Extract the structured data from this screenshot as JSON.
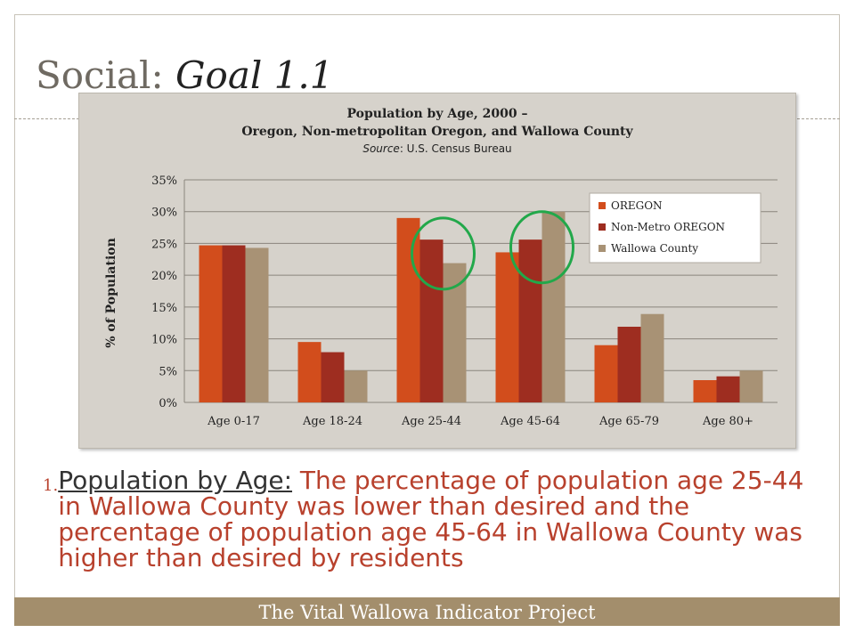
{
  "slide": {
    "title_prefix": "Social: ",
    "title_emphasis": "Goal 1.1",
    "footer": "The Vital Wallowa Indicator Project",
    "list_number": "1.",
    "list_lead": "Population by Age:",
    "list_text": " The percentage of population age 25-44 in Wallowa County was lower than desired and the percentage of population age 45-64 in Wallowa County was higher than desired by residents"
  },
  "chart_data": {
    "type": "bar",
    "title_line1": "Population by Age, 2000 –",
    "title_line2": "Oregon, Non-metropolitan Oregon, and Wallowa County",
    "source_label": "Source",
    "source_text": ": U.S. Census Bureau",
    "ylabel": "% of Population",
    "xlabel": "",
    "categories": [
      "Age 0-17",
      "Age 18-24",
      "Age 25-44",
      "Age 45-64",
      "Age 65-79",
      "Age 80+"
    ],
    "series": [
      {
        "name": "OREGON",
        "color": "#d24d1c",
        "values": [
          24.7,
          9.5,
          29.0,
          23.6,
          9.0,
          3.5
        ]
      },
      {
        "name": "Non-Metro OREGON",
        "color": "#9e2d20",
        "values": [
          24.7,
          7.9,
          25.6,
          25.6,
          11.9,
          4.1
        ]
      },
      {
        "name": "Wallowa County",
        "color": "#a89275",
        "values": [
          24.3,
          5.0,
          21.9,
          30.0,
          13.9,
          5.0
        ]
      }
    ],
    "ylim": [
      0,
      35
    ],
    "yticks": [
      "0%",
      "5%",
      "10%",
      "15%",
      "20%",
      "25%",
      "30%",
      "35%"
    ],
    "grid": true,
    "legend_position": "top-right",
    "highlight_color": "#22a84a",
    "highlights": [
      {
        "category": "Age 25-44",
        "note": "circled"
      },
      {
        "category": "Age 45-64",
        "note": "circled"
      }
    ]
  }
}
